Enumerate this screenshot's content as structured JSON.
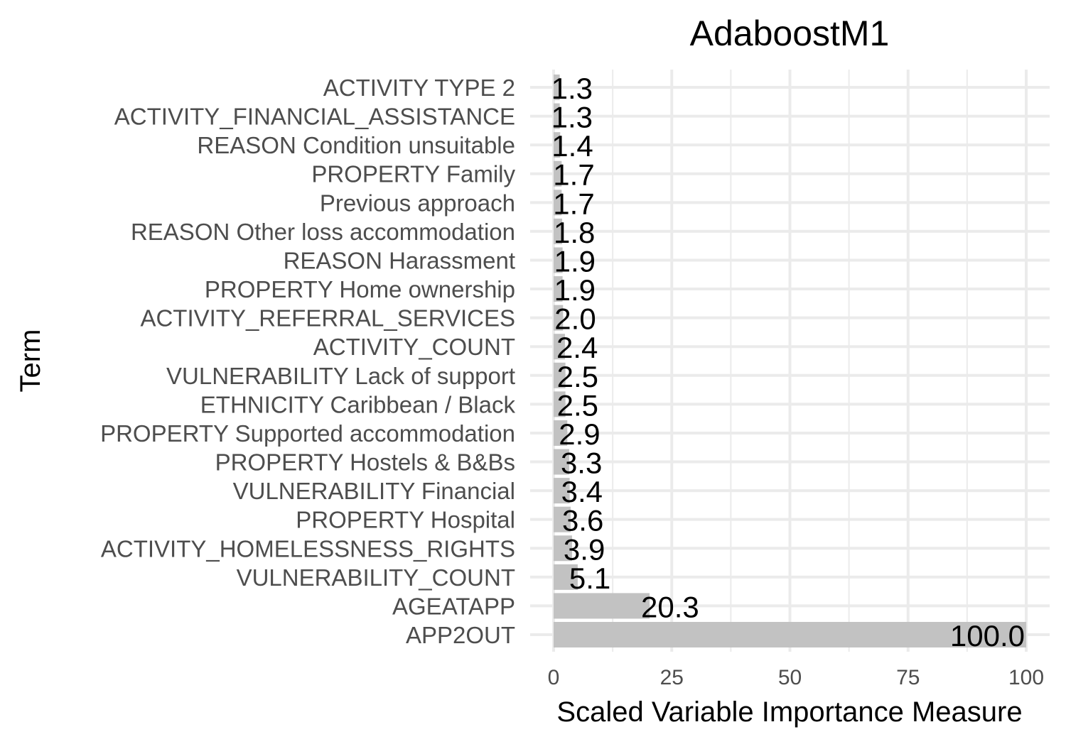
{
  "chart_data": {
    "type": "bar",
    "orientation": "horizontal",
    "title": "AdaboostM1",
    "xlabel": "Scaled Variable Importance Measure",
    "ylabel": "Term",
    "xlim": [
      0,
      100
    ],
    "xticks": [
      0,
      25,
      50,
      75,
      100
    ],
    "grid": true,
    "bar_color": "#c2c2c2",
    "grid_color": "#ebebeb",
    "categories": [
      "ACTIVITY TYPE 2",
      "ACTIVITY_FINANCIAL_ASSISTANCE",
      "REASON Condition unsuitable",
      "PROPERTY Family",
      "Previous approach",
      "REASON Other loss accommodation",
      "REASON Harassment",
      "PROPERTY Home ownership",
      "ACTIVITY_REFERRAL_SERVICES",
      "ACTIVITY_COUNT",
      "VULNERABILITY Lack of support",
      "ETHNICITY Caribbean / Black",
      "PROPERTY Supported accommodation",
      "PROPERTY Hostels & B&Bs",
      "VULNERABILITY Financial",
      "PROPERTY Hospital",
      "ACTIVITY_HOMELESSNESS_RIGHTS",
      "VULNERABILITY_COUNT",
      "AGEATAPP",
      "APP2OUT"
    ],
    "values": [
      1.3,
      1.3,
      1.4,
      1.7,
      1.7,
      1.8,
      1.9,
      1.9,
      2.0,
      2.4,
      2.5,
      2.5,
      2.9,
      3.3,
      3.4,
      3.6,
      3.9,
      5.1,
      20.3,
      100.0
    ],
    "value_labels": [
      "1.3",
      "1.3",
      "1.4",
      "1.7",
      "1.7",
      "1.8",
      "1.9",
      "1.9",
      "2.0",
      "2.4",
      "2.5",
      "2.5",
      "2.9",
      "3.3",
      "3.4",
      "3.6",
      "3.9",
      "5.1",
      "20.3",
      "100.0"
    ]
  }
}
